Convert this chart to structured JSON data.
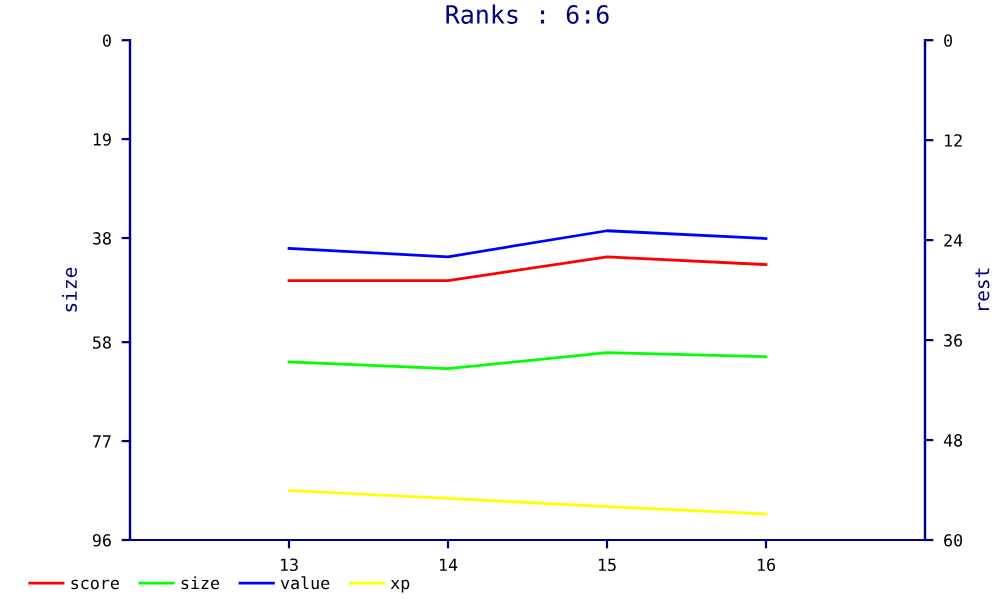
{
  "chart_data": {
    "type": "line",
    "title": "Ranks : 6:6",
    "ylabel": "size",
    "y2label": "rest",
    "x": [
      13,
      14,
      15,
      16
    ],
    "xlim": [
      12,
      17
    ],
    "xticks": [
      13,
      14,
      15,
      16
    ],
    "ylim": [
      96,
      0
    ],
    "yticks": [
      0,
      19,
      38,
      58,
      77,
      96
    ],
    "y2lim": [
      60,
      0
    ],
    "y2ticks": [
      0,
      12,
      24,
      36,
      48,
      60
    ],
    "grid": false,
    "legend": "bottom",
    "marker": "none",
    "line_style": "solid",
    "series": [
      {
        "name": "score",
        "color": "#ff0000",
        "values": [
          46.2,
          46.2,
          41.6,
          43.1
        ]
      },
      {
        "name": "size",
        "color": "#00ff00",
        "values": [
          61.8,
          63.1,
          60.0,
          60.8
        ]
      },
      {
        "name": "value",
        "color": "#0000ff",
        "values": [
          40.0,
          41.6,
          36.6,
          38.1
        ]
      },
      {
        "name": "xp",
        "color": "#ffff00",
        "values": [
          86.5,
          88.0,
          89.6,
          91.0
        ]
      }
    ]
  }
}
